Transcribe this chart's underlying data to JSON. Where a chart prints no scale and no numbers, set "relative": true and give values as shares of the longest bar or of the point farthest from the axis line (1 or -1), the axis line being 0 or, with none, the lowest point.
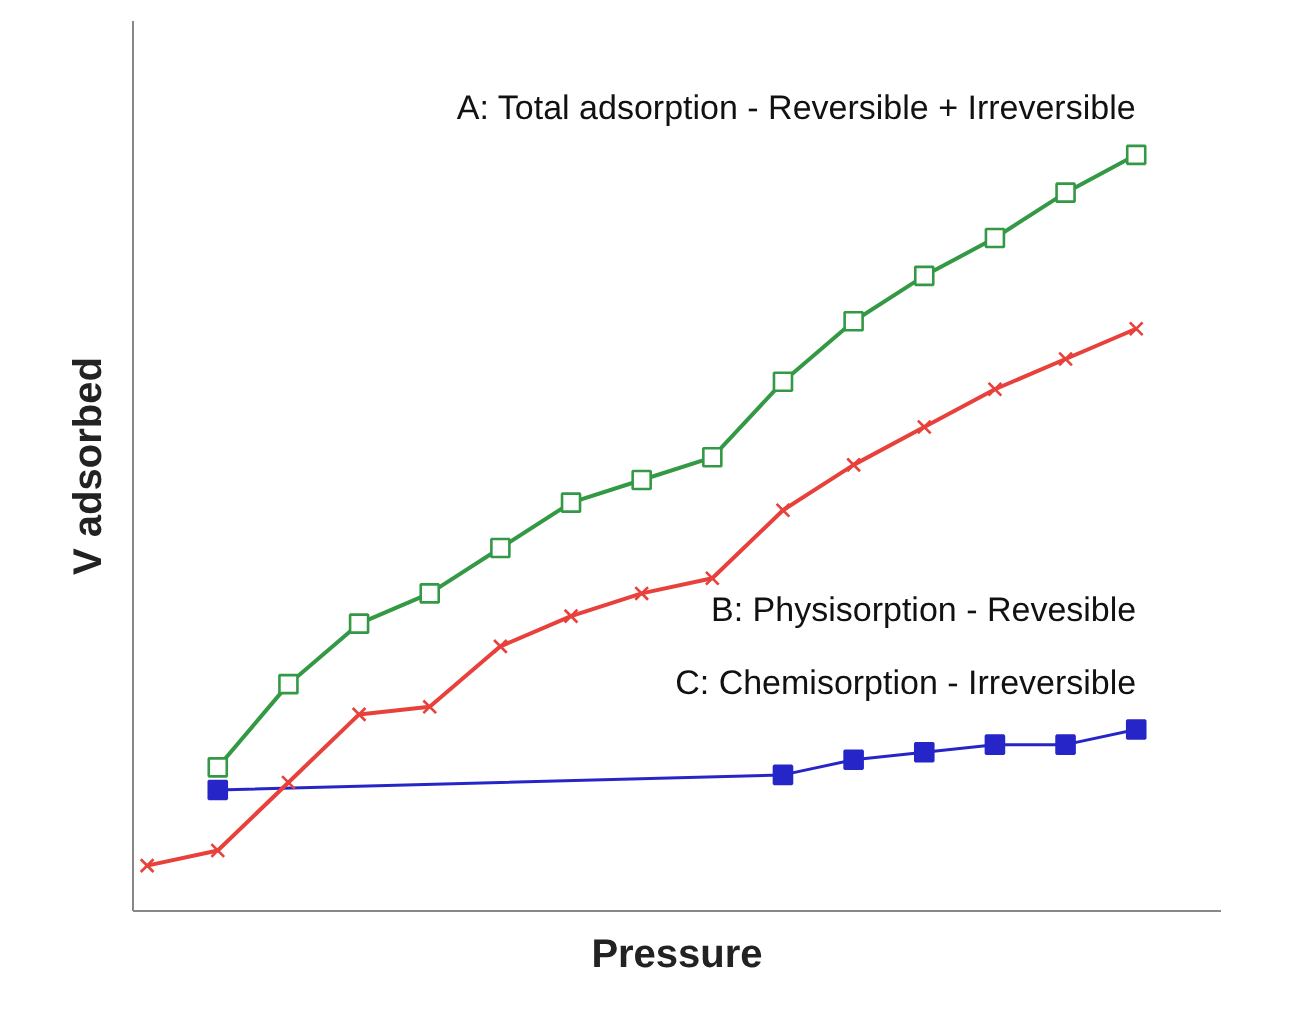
{
  "chart_data": {
    "type": "line",
    "relative": true,
    "xlabel": "Pressure",
    "ylabel": "V adsorbed",
    "grid": false,
    "line_style": "solid",
    "categories": [
      null,
      null,
      null,
      null,
      null,
      null,
      null,
      null,
      null,
      null,
      null,
      null,
      null,
      null,
      null
    ],
    "series": [
      {
        "name": "A: Total adsorption - Reversible + Irreversible",
        "color": "#339944",
        "marker": "square",
        "values": [
          null,
          0.19,
          0.3,
          0.38,
          0.42,
          0.48,
          0.54,
          0.57,
          0.6,
          0.7,
          0.78,
          0.84,
          0.89,
          0.95,
          1.0
        ]
      },
      {
        "name": "B: Physisorption - Revesible",
        "color": "#e8403a",
        "marker": "cross",
        "values": [
          0.06,
          0.08,
          0.17,
          0.26,
          0.27,
          0.35,
          0.39,
          0.42,
          0.44,
          0.53,
          0.59,
          0.64,
          0.69,
          0.73,
          0.77
        ]
      },
      {
        "name": "C: Chemisorption - Irreversible",
        "color": "#2626c8",
        "marker": "square",
        "values": [
          null,
          0.16,
          null,
          null,
          null,
          null,
          null,
          null,
          null,
          0.18,
          0.2,
          0.21,
          0.22,
          0.22,
          0.24
        ]
      }
    ]
  }
}
